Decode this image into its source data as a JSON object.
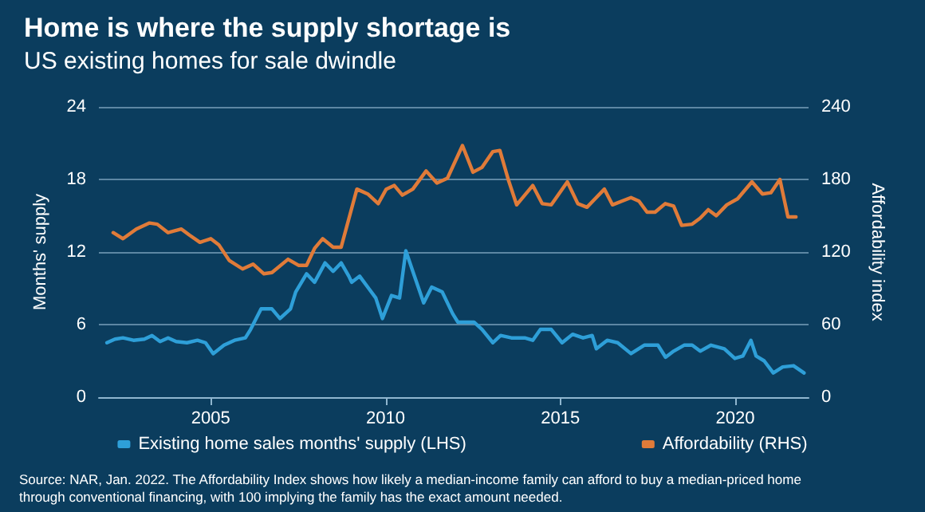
{
  "chart_data": {
    "type": "line",
    "title": "Home is where the supply shortage is",
    "subtitle": "US existing homes for sale dwindle",
    "ylabel": "Months' supply",
    "y2label": "Affordability index",
    "xlim": [
      2001.8,
      2022.1
    ],
    "xticks": [
      2005,
      2010,
      2015,
      2020
    ],
    "ylim": [
      0,
      24
    ],
    "yticks": [
      0,
      6,
      12,
      18,
      24
    ],
    "y2lim": [
      0,
      240
    ],
    "y2ticks": [
      0,
      60,
      120,
      180,
      240
    ],
    "grid": "y",
    "legend": "bottom",
    "marker": "none",
    "line_style": "solid",
    "series": [
      {
        "name": "Existing home sales months' supply (LHS)",
        "color": "#2e9fd8",
        "x": [
          2002.03,
          2002.26,
          2002.49,
          2002.79,
          2003.1,
          2003.32,
          2003.55,
          2003.78,
          2004.01,
          2004.32,
          2004.62,
          2004.85,
          2005.07,
          2005.38,
          2005.68,
          2005.99,
          2006.14,
          2006.44,
          2006.75,
          2006.98,
          2007.28,
          2007.43,
          2007.74,
          2007.97,
          2008.27,
          2008.5,
          2008.73,
          2008.95,
          2009.03,
          2009.26,
          2009.49,
          2009.72,
          2009.91,
          2010.17,
          2010.4,
          2010.58,
          2010.78,
          2011.09,
          2011.32,
          2011.62,
          2011.92,
          2012.07,
          2012.38,
          2012.53,
          2012.76,
          2013.07,
          2013.29,
          2013.6,
          2013.98,
          2014.21,
          2014.43,
          2014.74,
          2015.05,
          2015.35,
          2015.65,
          2015.91,
          2016.03,
          2016.34,
          2016.64,
          2017.02,
          2017.4,
          2017.79,
          2018.01,
          2018.24,
          2018.54,
          2018.77,
          2019.0,
          2019.31,
          2019.69,
          2019.99,
          2020.22,
          2020.45,
          2020.6,
          2020.83,
          2021.09,
          2021.36,
          2021.67,
          2021.97
        ],
        "values": [
          4.5,
          4.8,
          4.9,
          4.7,
          4.8,
          5.1,
          4.6,
          4.9,
          4.6,
          4.5,
          4.7,
          4.5,
          3.6,
          4.3,
          4.7,
          4.9,
          5.6,
          7.3,
          7.3,
          6.5,
          7.3,
          8.7,
          10.2,
          9.5,
          11.1,
          10.4,
          11.1,
          10,
          9.5,
          10,
          9.1,
          8.2,
          6.5,
          8.4,
          8.2,
          12.1,
          10.4,
          7.8,
          9.1,
          8.7,
          6.9,
          6.2,
          6.2,
          6.2,
          5.6,
          4.5,
          5.1,
          4.9,
          4.9,
          4.7,
          5.6,
          5.6,
          4.5,
          5.2,
          4.9,
          5.1,
          4,
          4.7,
          4.5,
          3.6,
          4.3,
          4.3,
          3.3,
          3.8,
          4.3,
          4.3,
          3.8,
          4.3,
          4,
          3.2,
          3.4,
          4.7,
          3.4,
          3,
          2,
          2.5,
          2.6,
          2
        ]
      },
      {
        "name": "Affordability (RHS)",
        "color": "#e07b39",
        "axis": "y2",
        "x": [
          2002.21,
          2002.49,
          2002.87,
          2003.25,
          2003.47,
          2003.78,
          2004.16,
          2004.39,
          2004.69,
          2005.0,
          2005.23,
          2005.53,
          2005.91,
          2006.21,
          2006.52,
          2006.75,
          2007.21,
          2007.51,
          2007.74,
          2007.97,
          2008.2,
          2008.5,
          2008.73,
          2009.18,
          2009.49,
          2009.79,
          2010.02,
          2010.25,
          2010.48,
          2010.78,
          2011.16,
          2011.47,
          2011.77,
          2012.2,
          2012.5,
          2012.76,
          2013.07,
          2013.27,
          2013.52,
          2013.75,
          2014.21,
          2014.48,
          2014.74,
          2015.2,
          2015.5,
          2015.76,
          2016.26,
          2016.49,
          2017.02,
          2017.25,
          2017.48,
          2017.71,
          2018.0,
          2018.24,
          2018.47,
          2018.77,
          2019.0,
          2019.23,
          2019.46,
          2019.76,
          2020.07,
          2020.48,
          2020.78,
          2021.02,
          2021.28,
          2021.51,
          2021.74
        ],
        "values": [
          136,
          131,
          139,
          144,
          143,
          136,
          139,
          134,
          128,
          131,
          126,
          113,
          106,
          110,
          102,
          103,
          114,
          109,
          109,
          123,
          131,
          124,
          124,
          172,
          168,
          160,
          172,
          175,
          167,
          172,
          187,
          177,
          181,
          208,
          186,
          190,
          203,
          204,
          179,
          159,
          175,
          160,
          159,
          178,
          160,
          157,
          172,
          159,
          165,
          162,
          153,
          153,
          160,
          158,
          142,
          143,
          148,
          155,
          150,
          159,
          164,
          178,
          168,
          169,
          180,
          149,
          149
        ]
      }
    ],
    "annotations": [
      "Source: NAR, Jan. 2022. The Affordability Index shows how likely a median-income family can afford to buy a median-priced home through conventional financing, with 100 implying the family has the exact amount needed."
    ]
  }
}
